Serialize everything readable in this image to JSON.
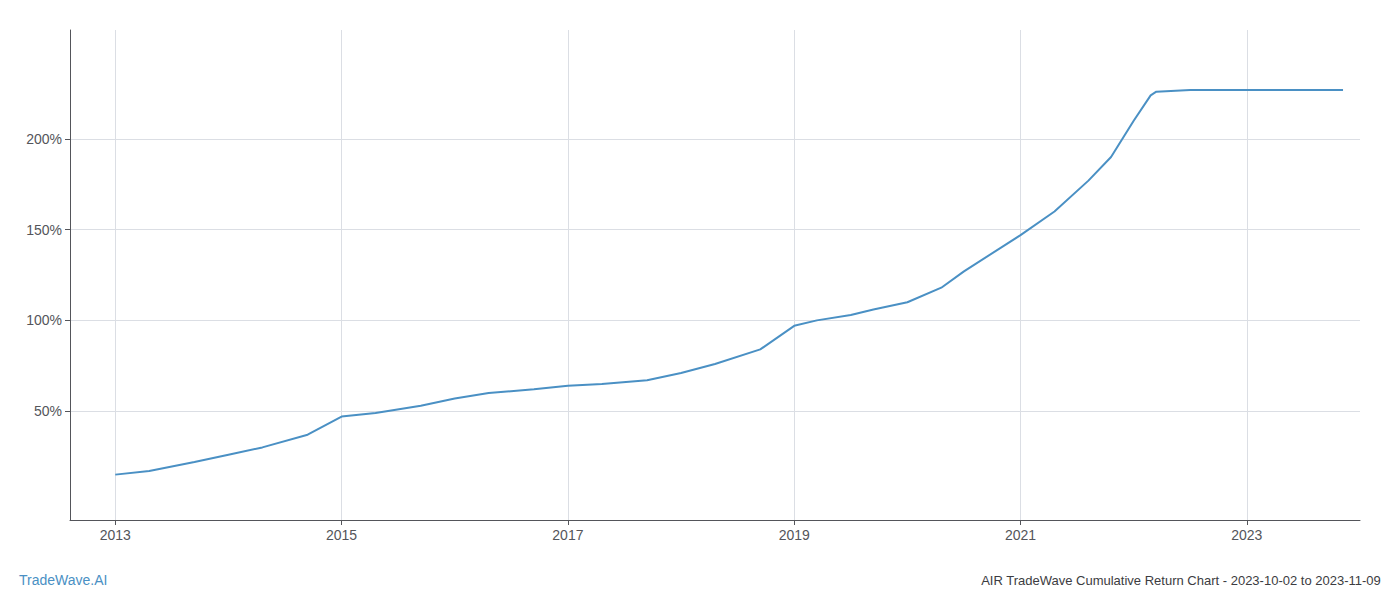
{
  "chart_data": {
    "type": "line",
    "title": "AIR TradeWave Cumulative Return Chart - 2023-10-02 to 2023-11-09",
    "annotations": [
      "TradeWave.AI"
    ],
    "x": [
      2013.0,
      2013.3,
      2013.7,
      2014.0,
      2014.3,
      2014.7,
      2015.0,
      2015.3,
      2015.7,
      2016.0,
      2016.3,
      2016.7,
      2017.0,
      2017.3,
      2017.7,
      2018.0,
      2018.3,
      2018.7,
      2019.0,
      2019.2,
      2019.5,
      2019.7,
      2020.0,
      2020.3,
      2020.5,
      2021.0,
      2021.3,
      2021.6,
      2021.8,
      2022.0,
      2022.15,
      2022.2,
      2022.5,
      2023.0,
      2023.5,
      2023.85
    ],
    "values": [
      15,
      17,
      22,
      26,
      30,
      37,
      47,
      49,
      53,
      57,
      60,
      62,
      64,
      65,
      67,
      71,
      76,
      84,
      97,
      100,
      103,
      106,
      110,
      118,
      127,
      147,
      160,
      177,
      190,
      210,
      224,
      226,
      227,
      227,
      227,
      227
    ],
    "color": "#4a90c4",
    "xlim": [
      2012.6,
      2024.0
    ],
    "xticks": [
      2013,
      2015,
      2017,
      2019,
      2021,
      2023
    ],
    "ylim": [
      -10,
      260
    ],
    "yticks": [
      {
        "value": 50,
        "label": "50%"
      },
      {
        "value": 100,
        "label": "100%"
      },
      {
        "value": 150,
        "label": "150%"
      },
      {
        "value": 200,
        "label": "200%"
      }
    ],
    "grid": true
  }
}
